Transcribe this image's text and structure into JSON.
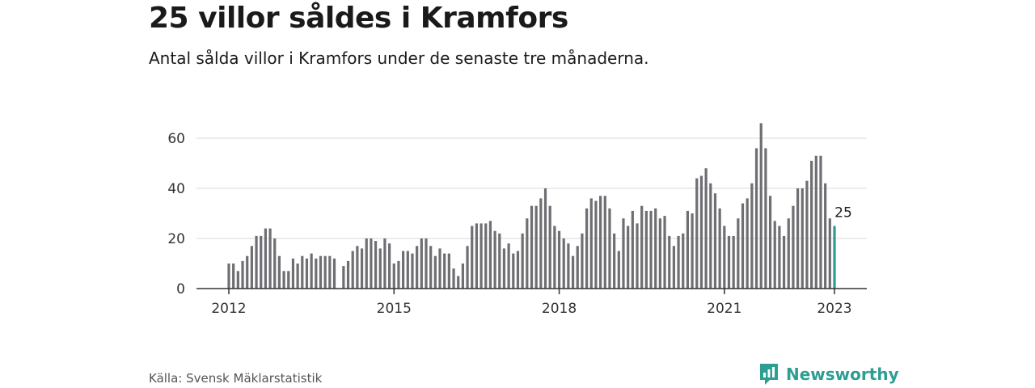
{
  "title": "25 villor såldes i Kramfors",
  "subtitle": "Antal sålda villor i Kramfors under de senaste tre månaderna.",
  "source": "Källa: Svensk Mäklarstatistik",
  "brand": {
    "name": "Newsworthy",
    "icon": "newsworthy-logo-icon"
  },
  "colors": {
    "bar": "#6e6e73",
    "highlight": "#2a9d8f",
    "grid": "#d9d9d9",
    "axis": "#333333"
  },
  "chart_data": {
    "type": "bar",
    "title": "25 villor såldes i Kramfors",
    "xlabel": "",
    "ylabel": "",
    "ylim": [
      0,
      70
    ],
    "yticks": [
      0,
      20,
      40,
      60
    ],
    "xticks": [
      "2012",
      "2015",
      "2018",
      "2021",
      "2023"
    ],
    "xlim": [
      "2012-01",
      "2023-01"
    ],
    "grid": true,
    "legend": "none",
    "highlight_label": "25",
    "x": [
      "2012-01",
      "2012-02",
      "2012-03",
      "2012-04",
      "2012-05",
      "2012-06",
      "2012-07",
      "2012-08",
      "2012-09",
      "2012-10",
      "2012-11",
      "2012-12",
      "2013-01",
      "2013-02",
      "2013-03",
      "2013-04",
      "2013-05",
      "2013-06",
      "2013-07",
      "2013-08",
      "2013-09",
      "2013-10",
      "2013-11",
      "2013-12",
      "2014-01",
      "2014-02",
      "2014-03",
      "2014-04",
      "2014-05",
      "2014-06",
      "2014-07",
      "2014-08",
      "2014-09",
      "2014-10",
      "2014-11",
      "2014-12",
      "2015-01",
      "2015-02",
      "2015-03",
      "2015-04",
      "2015-05",
      "2015-06",
      "2015-07",
      "2015-08",
      "2015-09",
      "2015-10",
      "2015-11",
      "2015-12",
      "2016-01",
      "2016-02",
      "2016-03",
      "2016-04",
      "2016-05",
      "2016-06",
      "2016-07",
      "2016-08",
      "2016-09",
      "2016-10",
      "2016-11",
      "2016-12",
      "2017-01",
      "2017-02",
      "2017-03",
      "2017-04",
      "2017-05",
      "2017-06",
      "2017-07",
      "2017-08",
      "2017-09",
      "2017-10",
      "2017-11",
      "2017-12",
      "2018-01",
      "2018-02",
      "2018-03",
      "2018-04",
      "2018-05",
      "2018-06",
      "2018-07",
      "2018-08",
      "2018-09",
      "2018-10",
      "2018-11",
      "2018-12",
      "2019-01",
      "2019-02",
      "2019-03",
      "2019-04",
      "2019-05",
      "2019-06",
      "2019-07",
      "2019-08",
      "2019-09",
      "2019-10",
      "2019-11",
      "2019-12",
      "2020-01",
      "2020-02",
      "2020-03",
      "2020-04",
      "2020-05",
      "2020-06",
      "2020-07",
      "2020-08",
      "2020-09",
      "2020-10",
      "2020-11",
      "2020-12",
      "2021-01",
      "2021-02",
      "2021-03",
      "2021-04",
      "2021-05",
      "2021-06",
      "2021-07",
      "2021-08",
      "2021-09",
      "2021-10",
      "2021-11",
      "2021-12",
      "2022-01",
      "2022-02",
      "2022-03",
      "2022-04",
      "2022-05",
      "2022-06",
      "2022-07",
      "2022-08",
      "2022-09",
      "2022-10",
      "2022-11",
      "2022-12",
      "2023-01"
    ],
    "values": [
      10,
      10,
      7,
      11,
      13,
      17,
      21,
      21,
      24,
      24,
      20,
      13,
      7,
      7,
      12,
      10,
      13,
      12,
      14,
      12,
      13,
      13,
      13,
      12,
      null,
      9,
      11,
      15,
      17,
      16,
      20,
      20,
      19,
      16,
      20,
      18,
      10,
      11,
      15,
      15,
      14,
      17,
      20,
      20,
      17,
      13,
      16,
      14,
      14,
      8,
      5,
      10,
      17,
      25,
      26,
      26,
      26,
      27,
      23,
      22,
      16,
      18,
      14,
      15,
      22,
      28,
      33,
      33,
      36,
      40,
      33,
      25,
      23,
      20,
      18,
      13,
      17,
      22,
      32,
      36,
      35,
      37,
      37,
      32,
      22,
      15,
      28,
      25,
      31,
      26,
      33,
      31,
      31,
      32,
      28,
      29,
      21,
      17,
      21,
      22,
      31,
      30,
      44,
      45,
      48,
      42,
      38,
      32,
      25,
      21,
      21,
      28,
      34,
      36,
      42,
      56,
      66,
      56,
      37,
      27,
      25,
      21,
      28,
      33,
      40,
      40,
      43,
      51,
      53,
      53,
      42,
      28,
      25
    ]
  }
}
